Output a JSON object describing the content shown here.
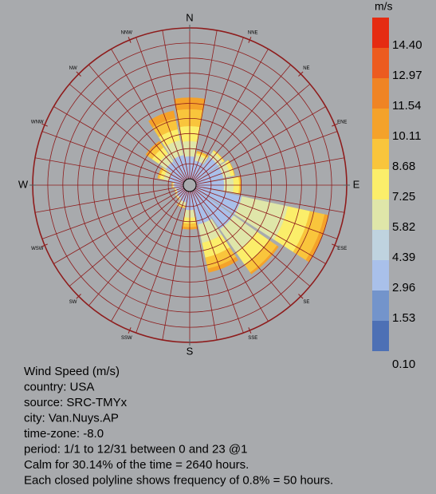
{
  "chart_data": {
    "type": "windrose",
    "directions": [
      "N",
      "NNE",
      "NE",
      "ENE",
      "E",
      "ESE",
      "SE",
      "SSE",
      "S",
      "SSW",
      "SW",
      "WSW",
      "W",
      "WNW",
      "NW",
      "NNW"
    ],
    "rlim": [
      0,
      8
    ],
    "rticks": [
      0.8,
      1.6,
      2.4,
      3.2,
      4,
      4.8,
      5.6,
      6.4,
      7.2,
      8
    ],
    "series": [
      {
        "color": "#a9c0ea",
        "values": [
          1.2,
          1.0,
          1.5,
          1.5,
          1.5,
          2.5,
          2.5,
          1.8,
          1.0,
          0.6,
          0.5,
          0.4,
          0.5,
          0.8,
          1.2,
          1.3
        ]
      },
      {
        "color": "#dfe6a9",
        "values": [
          0.8,
          0.3,
          0.3,
          0.4,
          0.5,
          2.5,
          1.5,
          1.0,
          0.4,
          0.2,
          0.1,
          0.1,
          0.1,
          0.3,
          0.5,
          0.8
        ]
      },
      {
        "color": "#fbee6a",
        "values": [
          0.8,
          0.1,
          0.1,
          0.2,
          0.3,
          1.2,
          0.8,
          0.8,
          0.3,
          0.1,
          0,
          0,
          0,
          0.2,
          0.4,
          0.6
        ]
      },
      {
        "color": "#f9c53c",
        "values": [
          0.9,
          0.1,
          0,
          0,
          0.1,
          0.8,
          0.5,
          0.6,
          0.2,
          0,
          0,
          0,
          0,
          0.1,
          0.3,
          0.6
        ]
      },
      {
        "color": "#f4a22a",
        "values": [
          0.6,
          0,
          0,
          0,
          0,
          0.2,
          0.1,
          0.2,
          0.1,
          0,
          0,
          0,
          0,
          0,
          0.1,
          0.4
        ]
      }
    ],
    "colorbar": {
      "title": "m/s",
      "labels": [
        {
          "value": 14.4,
          "label": "14.40"
        },
        {
          "value": 12.97,
          "label": "12.97"
        },
        {
          "value": 11.54,
          "label": "11.54"
        },
        {
          "value": 10.11,
          "label": "10.11"
        },
        {
          "value": 8.68,
          "label": "8.68"
        },
        {
          "value": 7.25,
          "label": "7.25"
        },
        {
          "value": 5.82,
          "label": "5.82"
        },
        {
          "value": 4.39,
          "label": "4.39"
        },
        {
          "value": 2.96,
          "label": "2.96"
        },
        {
          "value": 1.53,
          "label": "1.53"
        },
        {
          "value": 0.1,
          "label": "0.10"
        }
      ],
      "colors": [
        "#e52b12",
        "#ec5b1f",
        "#ef8424",
        "#f4a22a",
        "#f9c53c",
        "#fbee6a",
        "#dfe6a9",
        "#bfd3df",
        "#a9c0ea",
        "#7394cb",
        "#4d70b5"
      ]
    },
    "notes": [
      "Wind Speed (m/s)",
      "country: USA",
      "source: SRC-TMYx",
      "city: Van.Nuys.AP",
      "time-zone: -8.0",
      "period: 1/1 to 12/31 between 0 and 23 @1",
      "Calm for 30.14% of the time = 2640 hours.",
      "Each closed polyline shows frequency of 0.8% = 50 hours."
    ]
  }
}
